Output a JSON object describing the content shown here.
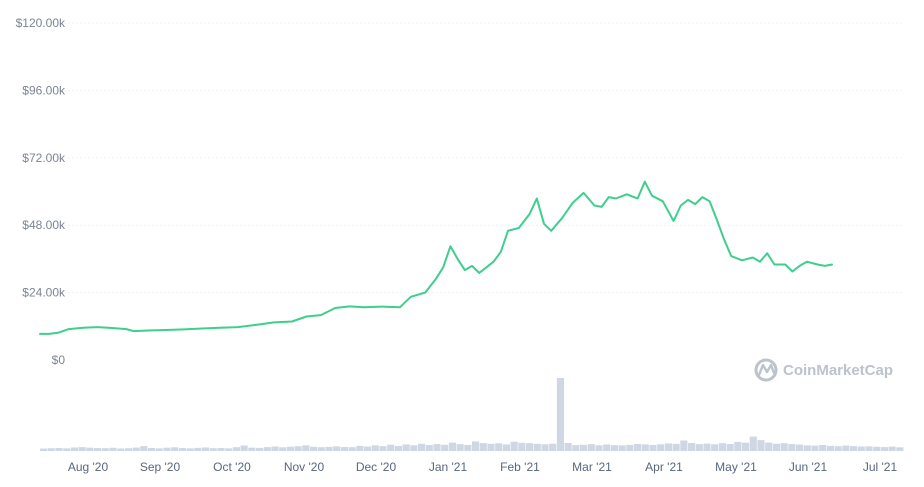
{
  "chart_data": {
    "type": "line",
    "title": "",
    "xlabel": "",
    "ylabel": "",
    "ylim": [
      0,
      120000
    ],
    "y_ticks": [
      {
        "value": 120000,
        "label": "$120.00k"
      },
      {
        "value": 96000,
        "label": "$96.00k"
      },
      {
        "value": 72000,
        "label": "$72.00k"
      },
      {
        "value": 48000,
        "label": "$48.00k"
      },
      {
        "value": 24000,
        "label": "$24.00k"
      },
      {
        "value": 0,
        "label": "$0"
      }
    ],
    "x_ticks": [
      "Aug '20",
      "Sep '20",
      "Oct '20",
      "Nov '20",
      "Dec '20",
      "Jan '21",
      "Feb '21",
      "Mar '21",
      "Apr '21",
      "May '21",
      "Jun '21",
      "Jul '21"
    ],
    "grid": true,
    "line_color": "#3ecf8e",
    "volume_color": "#cfd6e4",
    "watermark": "CoinMarketCap",
    "series": [
      {
        "values": [
          [
            0,
            9300
          ],
          [
            0.25,
            9300
          ],
          [
            0.5,
            9700
          ],
          [
            0.8,
            11000
          ],
          [
            1.2,
            11500
          ],
          [
            1.6,
            11700
          ],
          [
            2.0,
            11400
          ],
          [
            2.4,
            11000
          ],
          [
            2.6,
            10300
          ],
          [
            3.0,
            10500
          ],
          [
            3.5,
            10700
          ],
          [
            4.0,
            10900
          ],
          [
            4.5,
            11200
          ],
          [
            5.0,
            11500
          ],
          [
            5.5,
            11700
          ],
          [
            6.0,
            12500
          ],
          [
            6.5,
            13400
          ],
          [
            7.0,
            13700
          ],
          [
            7.4,
            15500
          ],
          [
            7.8,
            16000
          ],
          [
            8.2,
            18500
          ],
          [
            8.6,
            19100
          ],
          [
            9.0,
            18800
          ],
          [
            9.5,
            19000
          ],
          [
            10.0,
            18800
          ],
          [
            10.3,
            22500
          ],
          [
            10.7,
            24000
          ],
          [
            11.0,
            28900
          ],
          [
            11.2,
            33000
          ],
          [
            11.4,
            40500
          ],
          [
            11.6,
            36000
          ],
          [
            11.8,
            32000
          ],
          [
            12.0,
            33500
          ],
          [
            12.2,
            31000
          ],
          [
            12.4,
            33000
          ],
          [
            12.6,
            35000
          ],
          [
            12.8,
            38500
          ],
          [
            13.0,
            46000
          ],
          [
            13.3,
            47000
          ],
          [
            13.6,
            52000
          ],
          [
            13.8,
            57500
          ],
          [
            14.0,
            48500
          ],
          [
            14.2,
            46000
          ],
          [
            14.5,
            50500
          ],
          [
            14.8,
            56000
          ],
          [
            15.1,
            59500
          ],
          [
            15.4,
            55000
          ],
          [
            15.6,
            54500
          ],
          [
            15.8,
            58000
          ],
          [
            16.0,
            57500
          ],
          [
            16.3,
            59000
          ],
          [
            16.6,
            57500
          ],
          [
            16.8,
            63500
          ],
          [
            17.0,
            58500
          ],
          [
            17.3,
            56500
          ],
          [
            17.6,
            49500
          ],
          [
            17.8,
            55000
          ],
          [
            18.0,
            57000
          ],
          [
            18.2,
            55500
          ],
          [
            18.4,
            58000
          ],
          [
            18.6,
            56500
          ],
          [
            18.8,
            50000
          ],
          [
            19.0,
            43000
          ],
          [
            19.2,
            37000
          ],
          [
            19.5,
            35500
          ],
          [
            19.8,
            36500
          ],
          [
            20.0,
            35000
          ],
          [
            20.2,
            38000
          ],
          [
            20.4,
            34000
          ],
          [
            20.7,
            34000
          ],
          [
            20.9,
            31500
          ],
          [
            21.1,
            33500
          ],
          [
            21.3,
            35000
          ],
          [
            21.6,
            34000
          ],
          [
            21.8,
            33500
          ],
          [
            22.0,
            34000
          ]
        ]
      }
    ],
    "volume": [
      2.5,
      2.8,
      3.1,
      2.7,
      3.6,
      4.0,
      3.4,
      3.0,
      2.9,
      3.3,
      2.6,
      2.8,
      3.5,
      5.0,
      3.1,
      2.7,
      3.4,
      3.8,
      3.0,
      2.7,
      3.2,
      3.6,
      2.9,
      3.1,
      2.7,
      3.9,
      5.6,
      3.4,
      3.2,
      4.0,
      4.6,
      3.8,
      4.4,
      4.9,
      5.8,
      4.3,
      3.9,
      4.2,
      4.8,
      4.1,
      3.9,
      5.2,
      4.6,
      5.8,
      4.9,
      6.5,
      5.1,
      6.8,
      5.9,
      7.4,
      6.2,
      7.1,
      6.4,
      8.6,
      7.0,
      6.2,
      9.8,
      8.1,
      7.4,
      7.9,
      6.8,
      9.5,
      8.4,
      8.0,
      7.3,
      6.9,
      7.5,
      75.0,
      8.2,
      6.0,
      6.4,
      7.1,
      5.9,
      6.7,
      6.0,
      5.8,
      6.3,
      7.2,
      6.8,
      6.2,
      6.9,
      7.8,
      7.4,
      10.8,
      8.2,
      7.1,
      7.6,
      6.9,
      8.0,
      7.2,
      9.4,
      8.5,
      14.8,
      11.2,
      8.6,
      7.4,
      8.0,
      7.1,
      6.6,
      5.8,
      5.5,
      6.2,
      5.3,
      4.9,
      5.6,
      5.0,
      4.6,
      4.8,
      4.3,
      4.0,
      4.5,
      3.8
    ],
    "volume_max": 75.0
  }
}
